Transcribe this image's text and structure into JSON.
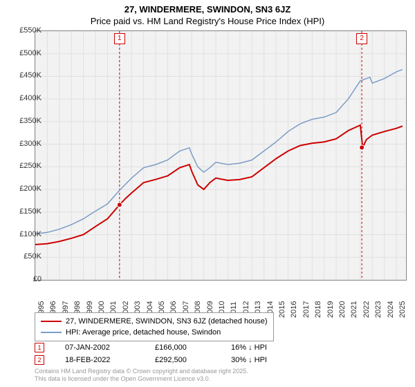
{
  "title": "27, WINDERMERE, SWINDON, SN3 6JZ",
  "subtitle": "Price paid vs. HM Land Registry's House Price Index (HPI)",
  "chart": {
    "type": "line",
    "background_color": "#f2f2f2",
    "grid_color": "#e0e0e0",
    "border_color": "#888888",
    "x_axis": {
      "min": 1995,
      "max": 2025.8,
      "ticks": [
        1995,
        1996,
        1997,
        1998,
        1999,
        2000,
        2001,
        2002,
        2003,
        2004,
        2005,
        2006,
        2007,
        2008,
        2009,
        2010,
        2011,
        2012,
        2013,
        2014,
        2015,
        2016,
        2017,
        2018,
        2019,
        2020,
        2021,
        2022,
        2023,
        2024,
        2025
      ]
    },
    "y_axis": {
      "min": 0,
      "max": 550000,
      "ticks": [
        0,
        50000,
        100000,
        150000,
        200000,
        250000,
        300000,
        350000,
        400000,
        450000,
        500000,
        550000
      ],
      "tick_labels": [
        "£0",
        "£50K",
        "£100K",
        "£150K",
        "£200K",
        "£250K",
        "£300K",
        "£350K",
        "£400K",
        "£450K",
        "£500K",
        "£550K"
      ]
    },
    "series": [
      {
        "name": "property_price",
        "label": "27, WINDERMERE, SWINDON, SN3 6JZ (detached house)",
        "color": "#cc0000",
        "width": 2,
        "data": [
          [
            1995,
            78000
          ],
          [
            1996,
            80000
          ],
          [
            1997,
            85000
          ],
          [
            1998,
            92000
          ],
          [
            1999,
            100000
          ],
          [
            2000,
            118000
          ],
          [
            2001,
            135000
          ],
          [
            2002,
            166000
          ],
          [
            2002.5,
            180000
          ],
          [
            2003,
            192000
          ],
          [
            2004,
            215000
          ],
          [
            2005,
            222000
          ],
          [
            2006,
            230000
          ],
          [
            2007,
            248000
          ],
          [
            2007.8,
            255000
          ],
          [
            2008,
            240000
          ],
          [
            2008.5,
            210000
          ],
          [
            2009,
            200000
          ],
          [
            2009.5,
            215000
          ],
          [
            2010,
            225000
          ],
          [
            2011,
            220000
          ],
          [
            2012,
            222000
          ],
          [
            2013,
            228000
          ],
          [
            2014,
            248000
          ],
          [
            2015,
            268000
          ],
          [
            2016,
            285000
          ],
          [
            2017,
            297000
          ],
          [
            2018,
            302000
          ],
          [
            2019,
            305000
          ],
          [
            2020,
            312000
          ],
          [
            2021,
            330000
          ],
          [
            2022,
            342000
          ],
          [
            2022.2,
            292500
          ],
          [
            2022.5,
            310000
          ],
          [
            2023,
            320000
          ],
          [
            2024,
            328000
          ],
          [
            2025,
            335000
          ],
          [
            2025.5,
            340000
          ]
        ]
      },
      {
        "name": "hpi",
        "label": "HPI: Average price, detached house, Swindon",
        "color": "#7a9cc6",
        "width": 1.5,
        "data": [
          [
            1995,
            102000
          ],
          [
            1996,
            105000
          ],
          [
            1997,
            112000
          ],
          [
            1998,
            122000
          ],
          [
            1999,
            135000
          ],
          [
            2000,
            152000
          ],
          [
            2001,
            168000
          ],
          [
            2002,
            198000
          ],
          [
            2003,
            225000
          ],
          [
            2004,
            248000
          ],
          [
            2005,
            255000
          ],
          [
            2006,
            265000
          ],
          [
            2007,
            285000
          ],
          [
            2007.8,
            292000
          ],
          [
            2008,
            278000
          ],
          [
            2008.5,
            250000
          ],
          [
            2009,
            238000
          ],
          [
            2009.5,
            248000
          ],
          [
            2010,
            260000
          ],
          [
            2011,
            255000
          ],
          [
            2012,
            258000
          ],
          [
            2013,
            265000
          ],
          [
            2014,
            285000
          ],
          [
            2015,
            305000
          ],
          [
            2016,
            328000
          ],
          [
            2017,
            345000
          ],
          [
            2018,
            355000
          ],
          [
            2019,
            360000
          ],
          [
            2020,
            370000
          ],
          [
            2021,
            400000
          ],
          [
            2022,
            440000
          ],
          [
            2022.8,
            448000
          ],
          [
            2023,
            435000
          ],
          [
            2024,
            445000
          ],
          [
            2025,
            460000
          ],
          [
            2025.5,
            465000
          ]
        ]
      }
    ],
    "markers": [
      {
        "id": "1",
        "x": 2002,
        "y": 166000,
        "line_color": "#cc0000"
      },
      {
        "id": "2",
        "x": 2022.13,
        "y": 292500,
        "line_color": "#cc0000"
      }
    ]
  },
  "legend": {
    "items": [
      {
        "color": "#cc0000",
        "width": 2,
        "label": "27, WINDERMERE, SWINDON, SN3 6JZ (detached house)"
      },
      {
        "color": "#7a9cc6",
        "width": 1.5,
        "label": "HPI: Average price, detached house, Swindon"
      }
    ]
  },
  "sales": [
    {
      "marker": "1",
      "date": "07-JAN-2002",
      "price": "£166,000",
      "diff": "16% ↓ HPI"
    },
    {
      "marker": "2",
      "date": "18-FEB-2022",
      "price": "£292,500",
      "diff": "30% ↓ HPI"
    }
  ],
  "attribution": {
    "line1": "Contains HM Land Registry data © Crown copyright and database right 2025.",
    "line2": "This data is licensed under the Open Government Licence v3.0."
  }
}
